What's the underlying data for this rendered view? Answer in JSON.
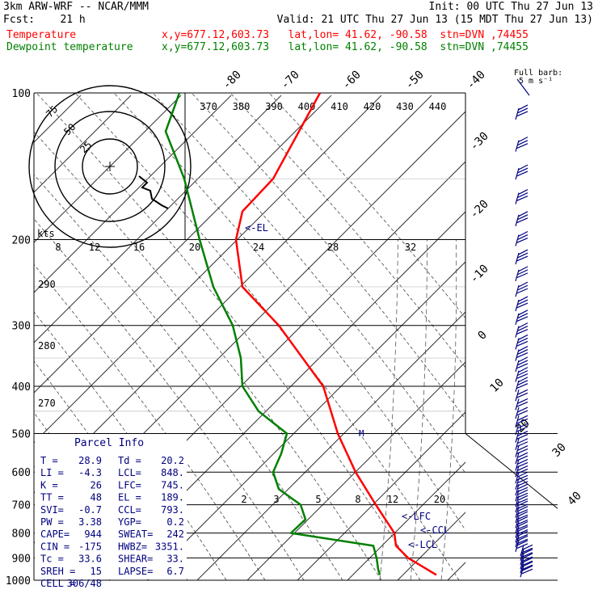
{
  "header": {
    "line1_left": "3km ARW-WRF -- NCAR/MMM",
    "line1_right": "Init: 00 UTC Thu 27 Jun 13",
    "line2_left": "Fcst:    21 h",
    "line2_right": "Valid: 21 UTC Thu 27 Jun 13 (15 MDT Thu 27 Jun 13)",
    "temp_label": "Temperature",
    "dew_label": "Dewpoint temperature",
    "temp_loc": "x,y=677.12,603.73   lat,lon= 41.62, -90.58  stn=DVN ,74455",
    "dew_loc": "x,y=677.12,603.73   lat,lon= 41.62, -90.58  stn=DVN ,74455",
    "temp_color": "#ff0000",
    "dew_color": "#008000",
    "full_barb": "Full barb:",
    "full_barb_unit": "5 m s⁻¹"
  },
  "chart_data": {
    "type": "line",
    "pressure_levels": [
      "100",
      "200",
      "300",
      "400",
      "500",
      "600",
      "700",
      "800",
      "900",
      "1000"
    ],
    "temp_axis_labels": [
      "-80",
      "-70",
      "-60",
      "-50",
      "-40",
      "-30",
      "-20",
      "-10",
      "0",
      "10",
      "20",
      "30",
      "40"
    ],
    "theta_labels": [
      "370",
      "380",
      "390",
      "400",
      "410",
      "420",
      "430",
      "440"
    ],
    "theta_left_labels": [
      "290",
      "280",
      "270"
    ],
    "mixing_ratio_labels": [
      "2",
      "3",
      "5",
      "8",
      "12",
      "20"
    ],
    "series": [
      {
        "name": "Temperature",
        "color": "#ff0000",
        "points": [
          [
            100,
            396
          ],
          [
            150,
            338
          ],
          [
            175,
            300
          ],
          [
            200,
            292
          ],
          [
            250,
            300
          ],
          [
            300,
            345
          ],
          [
            400,
            400
          ],
          [
            500,
            418
          ],
          [
            600,
            440
          ],
          [
            700,
            465
          ],
          [
            800,
            488
          ],
          [
            850,
            490
          ],
          [
            900,
            505
          ],
          [
            975,
            540
          ]
        ]
      },
      {
        "name": "Dewpoint temperature",
        "color": "#008000",
        "points": [
          [
            100,
            222
          ],
          [
            120,
            205
          ],
          [
            150,
            228
          ],
          [
            200,
            247
          ],
          [
            250,
            264
          ],
          [
            300,
            288
          ],
          [
            350,
            298
          ],
          [
            400,
            300
          ],
          [
            450,
            320
          ],
          [
            500,
            355
          ],
          [
            550,
            348
          ],
          [
            600,
            338
          ],
          [
            650,
            345
          ],
          [
            700,
            372
          ],
          [
            750,
            378
          ],
          [
            800,
            360
          ],
          [
            850,
            462
          ],
          [
            900,
            466
          ],
          [
            950,
            468
          ],
          [
            975,
            470
          ]
        ]
      }
    ],
    "hodograph": {
      "ring_labels": [
        "25",
        "50",
        "75"
      ],
      "unit_label": "kts",
      "speed_axis_labels": [
        "8",
        "12",
        "16",
        "20",
        "24",
        "28",
        "32"
      ]
    },
    "annotations": {
      "el": "<-EL",
      "lfc": "<-LFC",
      "ccl": "<-CCL",
      "lcl": "<-LCL",
      "m_marker": "M"
    }
  },
  "parcel_info": {
    "title": "Parcel Info",
    "rows": [
      [
        "T  =",
        "28.9",
        "Td =",
        "20.2"
      ],
      [
        "LI =",
        "-4.3",
        "LCL=",
        "848."
      ],
      [
        "K  =",
        "26",
        "LFC=",
        "745."
      ],
      [
        "TT =",
        "48",
        "EL =",
        "189."
      ],
      [
        "SVI=",
        "-0.7",
        "CCL=",
        "793."
      ],
      [
        "PW =",
        "3.38",
        "YGP=",
        "0.2"
      ],
      [
        "CAPE=",
        "944",
        "SWEAT=",
        "242"
      ],
      [
        "CIN =",
        "-175",
        "HWBZ=",
        "3351."
      ],
      [
        "Tc =",
        "33.6",
        "SHEAR=",
        "33."
      ],
      [
        "SREH =",
        "15",
        "LAPSE=",
        "6.7"
      ],
      [
        "CELL =",
        "306/48",
        "",
        ""
      ]
    ]
  }
}
